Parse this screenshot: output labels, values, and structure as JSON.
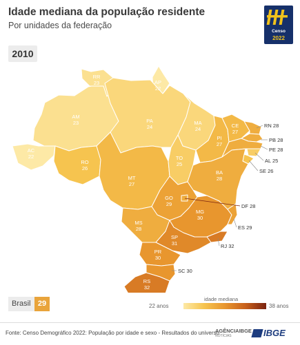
{
  "header": {
    "title": "Idade mediana da população residente",
    "subtitle": "Por unidades da federação",
    "year": "2010"
  },
  "logo": {
    "line1": "Censo",
    "line2": "2022"
  },
  "map": {
    "colors": {
      "outline": "#ffffff",
      "leader": "#888888",
      "label": "#ffffff",
      "outside_label": "#333333"
    },
    "states": [
      {
        "code": "RR",
        "value": 23
      },
      {
        "code": "AP",
        "value": 22
      },
      {
        "code": "AM",
        "value": 23
      },
      {
        "code": "PA",
        "value": 24
      },
      {
        "code": "MA",
        "value": 24
      },
      {
        "code": "CE",
        "value": 27
      },
      {
        "code": "PI",
        "value": 27
      },
      {
        "code": "AC",
        "value": 22
      },
      {
        "code": "RO",
        "value": 26
      },
      {
        "code": "TO",
        "value": 25
      },
      {
        "code": "BA",
        "value": 28
      },
      {
        "code": "MT",
        "value": 27
      },
      {
        "code": "GO",
        "value": 29
      },
      {
        "code": "MG",
        "value": 30
      },
      {
        "code": "MS",
        "value": 28
      },
      {
        "code": "SP",
        "value": 31
      },
      {
        "code": "PR",
        "value": 30
      },
      {
        "code": "RS",
        "value": 32
      },
      {
        "code": "RN",
        "value": 28
      },
      {
        "code": "PB",
        "value": 28
      },
      {
        "code": "PE",
        "value": 28
      },
      {
        "code": "AL",
        "value": 25
      },
      {
        "code": "SE",
        "value": 26
      },
      {
        "code": "DF",
        "value": 28
      },
      {
        "code": "ES",
        "value": 29
      },
      {
        "code": "RJ",
        "value": 32
      },
      {
        "code": "SC",
        "value": 30
      }
    ]
  },
  "brasil": {
    "label": "Brasil",
    "value": "29"
  },
  "legend": {
    "title": "idade mediana",
    "min_label": "22 anos",
    "max_label": "38 anos",
    "min": 22,
    "max": 38
  },
  "footer": {
    "source": "Fonte: Censo Demográfico 2022: População por idade e sexo - Resultados do universo",
    "agencia": "AGÊNCIAIBGE",
    "agencia_sub": "NOTÍCIAS",
    "ibge": "IBGE"
  }
}
